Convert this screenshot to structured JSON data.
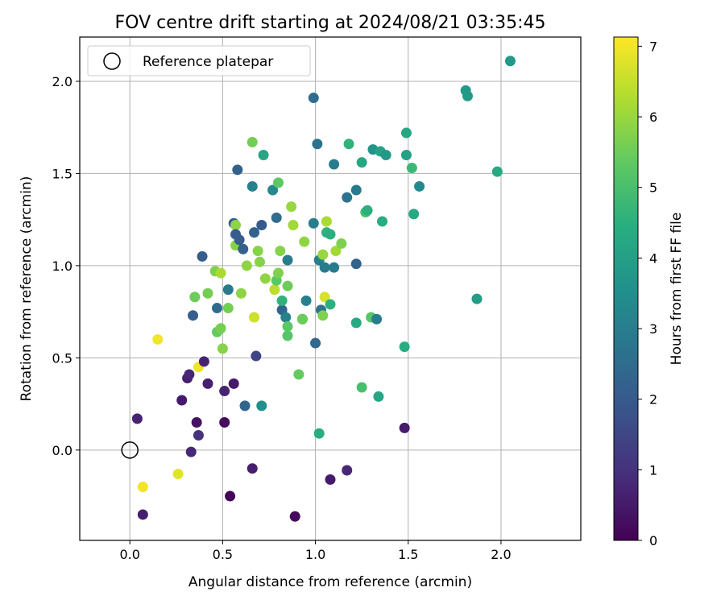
{
  "chart_data": {
    "type": "scatter",
    "title": "FOV centre drift starting at 2024/08/21 03:35:45",
    "xlabel": "Angular distance from reference (arcmin)",
    "ylabel": "Rotation from reference (arcmin)",
    "xlim": [
      -0.27,
      2.43
    ],
    "ylim": [
      -0.49,
      2.24
    ],
    "xticks": [
      "0.0",
      "0.5",
      "1.0",
      "1.5",
      "2.0"
    ],
    "yticks": [
      "0.0",
      "0.5",
      "1.0",
      "1.5",
      "2.0"
    ],
    "grid": true,
    "legend": {
      "placement": "top-left",
      "entries": [
        "Reference platepar"
      ]
    },
    "reference_point": {
      "x": 0.0,
      "y": 0.0,
      "label": "Reference platepar"
    },
    "colorbar": {
      "label": "Hours from first FF file",
      "min": 0,
      "max": 7.13,
      "ticks": [
        "0",
        "1",
        "2",
        "3",
        "4",
        "5",
        "6",
        "7"
      ],
      "colormap": "viridis"
    },
    "points": [
      {
        "x": 0.04,
        "y": 0.17,
        "c": 0.7
      },
      {
        "x": 0.07,
        "y": -0.35,
        "c": 0.6
      },
      {
        "x": 0.07,
        "y": -0.2,
        "c": 7.0
      },
      {
        "x": 0.15,
        "y": 0.6,
        "c": 7.0
      },
      {
        "x": 0.26,
        "y": -0.13,
        "c": 6.8
      },
      {
        "x": 0.28,
        "y": 0.27,
        "c": 0.5
      },
      {
        "x": 0.31,
        "y": 0.39,
        "c": 0.6
      },
      {
        "x": 0.32,
        "y": 0.41,
        "c": 0.8
      },
      {
        "x": 0.33,
        "y": -0.01,
        "c": 0.8
      },
      {
        "x": 0.34,
        "y": 0.73,
        "c": 2.1
      },
      {
        "x": 0.35,
        "y": 0.83,
        "c": 5.5
      },
      {
        "x": 0.36,
        "y": 0.15,
        "c": 0.3
      },
      {
        "x": 0.37,
        "y": 0.08,
        "c": 1.0
      },
      {
        "x": 0.37,
        "y": 0.45,
        "c": 7.0
      },
      {
        "x": 0.39,
        "y": 1.05,
        "c": 2.1
      },
      {
        "x": 0.4,
        "y": 0.48,
        "c": 0.7
      },
      {
        "x": 0.42,
        "y": 0.85,
        "c": 5.6
      },
      {
        "x": 0.42,
        "y": 0.36,
        "c": 0.6
      },
      {
        "x": 0.46,
        "y": 0.97,
        "c": 5.7
      },
      {
        "x": 0.47,
        "y": 0.77,
        "c": 2.5
      },
      {
        "x": 0.47,
        "y": 0.64,
        "c": 5.4
      },
      {
        "x": 0.49,
        "y": 0.96,
        "c": 6.2
      },
      {
        "x": 0.49,
        "y": 0.66,
        "c": 5.6
      },
      {
        "x": 0.5,
        "y": 0.55,
        "c": 5.8
      },
      {
        "x": 0.51,
        "y": 0.32,
        "c": 0.7
      },
      {
        "x": 0.51,
        "y": 0.15,
        "c": 0.2
      },
      {
        "x": 0.53,
        "y": 0.87,
        "c": 2.9
      },
      {
        "x": 0.53,
        "y": 0.77,
        "c": 5.6
      },
      {
        "x": 0.54,
        "y": -0.25,
        "c": 0.1
      },
      {
        "x": 0.56,
        "y": 0.36,
        "c": 0.5
      },
      {
        "x": 0.56,
        "y": 1.23,
        "c": 2.0
      },
      {
        "x": 0.57,
        "y": 1.22,
        "c": 5.9
      },
      {
        "x": 0.57,
        "y": 1.11,
        "c": 5.8
      },
      {
        "x": 0.57,
        "y": 1.17,
        "c": 2.1
      },
      {
        "x": 0.58,
        "y": 1.52,
        "c": 2.2
      },
      {
        "x": 0.59,
        "y": 1.14,
        "c": 2.1
      },
      {
        "x": 0.6,
        "y": 0.85,
        "c": 5.9
      },
      {
        "x": 0.61,
        "y": 1.09,
        "c": 2.2
      },
      {
        "x": 0.62,
        "y": 0.24,
        "c": 2.3
      },
      {
        "x": 0.63,
        "y": 1.0,
        "c": 5.9
      },
      {
        "x": 0.66,
        "y": 1.67,
        "c": 5.6
      },
      {
        "x": 0.66,
        "y": 1.43,
        "c": 3.1
      },
      {
        "x": 0.66,
        "y": -0.1,
        "c": 0.6
      },
      {
        "x": 0.67,
        "y": 1.18,
        "c": 2.2
      },
      {
        "x": 0.67,
        "y": 0.72,
        "c": 6.6
      },
      {
        "x": 0.68,
        "y": 0.51,
        "c": 1.5
      },
      {
        "x": 0.69,
        "y": 1.08,
        "c": 5.8
      },
      {
        "x": 0.7,
        "y": 1.02,
        "c": 5.8
      },
      {
        "x": 0.71,
        "y": 1.22,
        "c": 2.0
      },
      {
        "x": 0.71,
        "y": 0.24,
        "c": 3.5
      },
      {
        "x": 0.72,
        "y": 1.6,
        "c": 4.2
      },
      {
        "x": 0.73,
        "y": 0.93,
        "c": 5.9
      },
      {
        "x": 0.77,
        "y": 1.41,
        "c": 3.3
      },
      {
        "x": 0.78,
        "y": 0.87,
        "c": 6.4
      },
      {
        "x": 0.79,
        "y": 1.26,
        "c": 2.5
      },
      {
        "x": 0.79,
        "y": 0.92,
        "c": 5.3
      },
      {
        "x": 0.8,
        "y": 1.45,
        "c": 5.3
      },
      {
        "x": 0.8,
        "y": 0.96,
        "c": 5.7
      },
      {
        "x": 0.81,
        "y": 1.08,
        "c": 5.8
      },
      {
        "x": 0.82,
        "y": 0.76,
        "c": 2.3
      },
      {
        "x": 0.82,
        "y": 0.81,
        "c": 4.6
      },
      {
        "x": 0.84,
        "y": 0.72,
        "c": 3.1
      },
      {
        "x": 0.85,
        "y": 1.03,
        "c": 3.0
      },
      {
        "x": 0.85,
        "y": 0.67,
        "c": 5.3
      },
      {
        "x": 0.85,
        "y": 0.62,
        "c": 5.2
      },
      {
        "x": 0.85,
        "y": 0.89,
        "c": 5.5
      },
      {
        "x": 0.87,
        "y": 1.32,
        "c": 6.0
      },
      {
        "x": 0.88,
        "y": 1.22,
        "c": 6.1
      },
      {
        "x": 0.89,
        "y": -0.36,
        "c": 0.2
      },
      {
        "x": 0.91,
        "y": 0.41,
        "c": 5.4
      },
      {
        "x": 0.93,
        "y": 0.71,
        "c": 3.2
      },
      {
        "x": 0.93,
        "y": 0.71,
        "c": 5.5
      },
      {
        "x": 0.94,
        "y": 1.13,
        "c": 5.9
      },
      {
        "x": 0.95,
        "y": 0.81,
        "c": 3.1
      },
      {
        "x": 0.99,
        "y": 1.91,
        "c": 2.5
      },
      {
        "x": 0.99,
        "y": 1.23,
        "c": 3.0
      },
      {
        "x": 1.0,
        "y": 0.58,
        "c": 2.4
      },
      {
        "x": 1.01,
        "y": 1.66,
        "c": 2.7
      },
      {
        "x": 1.02,
        "y": 1.03,
        "c": 3.1
      },
      {
        "x": 1.02,
        "y": 0.09,
        "c": 4.4
      },
      {
        "x": 1.03,
        "y": 0.76,
        "c": 2.7
      },
      {
        "x": 1.04,
        "y": 1.06,
        "c": 6.0
      },
      {
        "x": 1.04,
        "y": 0.73,
        "c": 5.7
      },
      {
        "x": 1.05,
        "y": 0.83,
        "c": 6.7
      },
      {
        "x": 1.05,
        "y": 0.99,
        "c": 2.9
      },
      {
        "x": 1.06,
        "y": 1.24,
        "c": 6.2
      },
      {
        "x": 1.06,
        "y": 1.18,
        "c": 4.6
      },
      {
        "x": 1.08,
        "y": -0.16,
        "c": 0.5
      },
      {
        "x": 1.08,
        "y": 1.17,
        "c": 4.5
      },
      {
        "x": 1.08,
        "y": 0.79,
        "c": 4.5
      },
      {
        "x": 1.1,
        "y": 1.55,
        "c": 3.0
      },
      {
        "x": 1.1,
        "y": 0.99,
        "c": 2.9
      },
      {
        "x": 1.11,
        "y": 1.08,
        "c": 6.1
      },
      {
        "x": 1.14,
        "y": 1.12,
        "c": 5.7
      },
      {
        "x": 1.17,
        "y": 1.37,
        "c": 2.7
      },
      {
        "x": 1.17,
        "y": -0.11,
        "c": 0.8
      },
      {
        "x": 1.18,
        "y": 1.66,
        "c": 4.6
      },
      {
        "x": 1.22,
        "y": 1.41,
        "c": 2.9
      },
      {
        "x": 1.22,
        "y": 1.01,
        "c": 2.3
      },
      {
        "x": 1.22,
        "y": 0.69,
        "c": 4.3
      },
      {
        "x": 1.25,
        "y": 1.56,
        "c": 4.2
      },
      {
        "x": 1.25,
        "y": 0.34,
        "c": 5.0
      },
      {
        "x": 1.27,
        "y": 1.29,
        "c": 5.0
      },
      {
        "x": 1.28,
        "y": 1.3,
        "c": 4.5
      },
      {
        "x": 1.3,
        "y": 0.72,
        "c": 5.2
      },
      {
        "x": 1.31,
        "y": 1.63,
        "c": 3.7
      },
      {
        "x": 1.33,
        "y": 0.71,
        "c": 3.0
      },
      {
        "x": 1.34,
        "y": 0.29,
        "c": 4.2
      },
      {
        "x": 1.35,
        "y": 1.62,
        "c": 4.1
      },
      {
        "x": 1.36,
        "y": 1.24,
        "c": 4.4
      },
      {
        "x": 1.38,
        "y": 1.6,
        "c": 3.8
      },
      {
        "x": 1.48,
        "y": 0.12,
        "c": 0.5
      },
      {
        "x": 1.48,
        "y": 0.56,
        "c": 4.4
      },
      {
        "x": 1.49,
        "y": 1.72,
        "c": 4.2
      },
      {
        "x": 1.49,
        "y": 1.6,
        "c": 4.1
      },
      {
        "x": 1.52,
        "y": 1.53,
        "c": 4.8
      },
      {
        "x": 1.53,
        "y": 1.28,
        "c": 4.3
      },
      {
        "x": 1.56,
        "y": 1.43,
        "c": 3.4
      },
      {
        "x": 1.81,
        "y": 1.95,
        "c": 3.8
      },
      {
        "x": 1.82,
        "y": 1.92,
        "c": 3.8
      },
      {
        "x": 1.87,
        "y": 0.82,
        "c": 3.9
      },
      {
        "x": 1.98,
        "y": 1.51,
        "c": 4.3
      },
      {
        "x": 2.05,
        "y": 2.11,
        "c": 3.8
      }
    ]
  }
}
